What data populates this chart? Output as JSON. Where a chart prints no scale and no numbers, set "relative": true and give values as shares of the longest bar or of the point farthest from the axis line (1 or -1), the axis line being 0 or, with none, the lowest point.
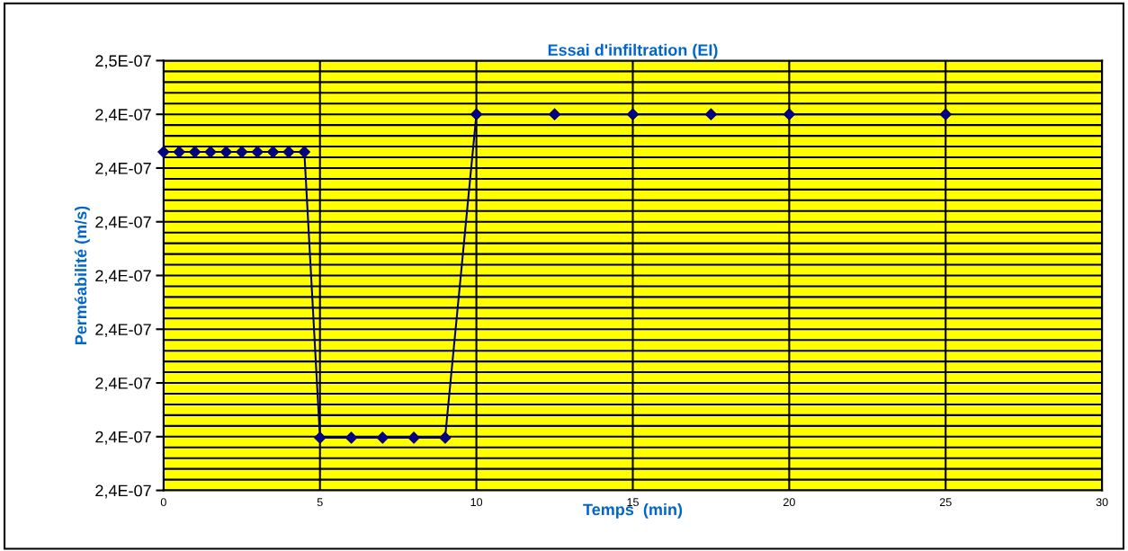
{
  "chart_data": {
    "type": "line",
    "title": "Essai d'infiltration (EI)",
    "xlabel": "Temps  (min)",
    "ylabel": "Perméabilité (m/s)",
    "x": [
      0,
      0.5,
      1,
      1.5,
      2,
      2.5,
      3,
      3.5,
      4,
      4.5,
      5,
      6,
      7,
      8,
      9,
      10,
      12.5,
      15,
      17.5,
      20,
      25
    ],
    "relative": true,
    "series": [
      {
        "color": "#000080",
        "values": [
          0.9,
          0.9,
          0.9,
          0.9,
          0.9,
          0.9,
          0.9,
          0.9,
          0.9,
          0.9,
          0.14,
          0.14,
          0.14,
          0.14,
          0.14,
          1,
          1,
          1,
          1,
          1,
          1
        ]
      }
    ],
    "xlim": [
      0,
      30
    ],
    "xticks": [
      0,
      5,
      10,
      15,
      20,
      25,
      30
    ],
    "annotations": [
      "2,4E-07",
      "2,4E-07",
      "2,4E-07",
      "2,4E-07",
      "2,4E-07",
      "2,4E-07",
      "2,4E-07",
      "2,4E-07",
      "2,5E-07"
    ],
    "grid": true,
    "marker": "diamond",
    "line_style": "solid",
    "legend": false
  }
}
